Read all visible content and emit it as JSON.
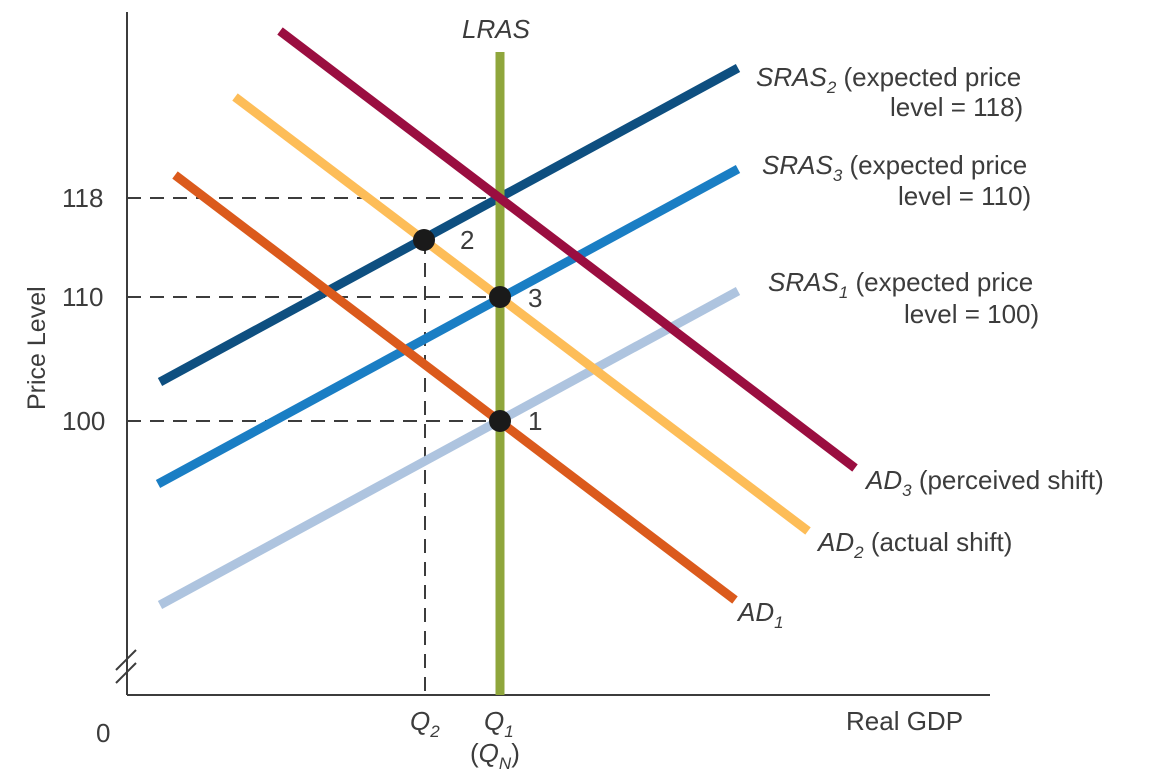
{
  "chart_data": {
    "type": "line",
    "title": "",
    "xlabel": "Real GDP",
    "ylabel": "Price Level",
    "origin_label": "0",
    "yticks": [
      {
        "value": 100,
        "label": "100"
      },
      {
        "value": 110,
        "label": "110"
      },
      {
        "value": 118,
        "label": "118"
      }
    ],
    "xticks": [
      {
        "id": "q2",
        "label": "Q",
        "sub": "2"
      },
      {
        "id": "q1",
        "label": "Q",
        "sub": "1"
      },
      {
        "id": "qn",
        "prefix": "(",
        "label": "Q",
        "sub": "N",
        "suffix": ")"
      }
    ],
    "curves": [
      {
        "id": "lras",
        "color": "#8fa63c",
        "label": "LRAS",
        "sub": "",
        "note": ""
      },
      {
        "id": "sras1",
        "color": "#aec4df",
        "label": "SRAS",
        "sub": "1",
        "note": " (expected price",
        "note2": "level = 100)"
      },
      {
        "id": "sras3",
        "color": "#1a7ec4",
        "label": "SRAS",
        "sub": "3",
        "note": " (expected price",
        "note2": "level = 110)"
      },
      {
        "id": "sras2",
        "color": "#0e4f80",
        "label": "SRAS",
        "sub": "2",
        "note": " (expected price",
        "note2": "level = 118)"
      },
      {
        "id": "ad1",
        "color": "#db5a1c",
        "label": "AD",
        "sub": "1",
        "note": ""
      },
      {
        "id": "ad2",
        "color": "#fdbd58",
        "label": "AD",
        "sub": "2",
        "note": " (actual shift)"
      },
      {
        "id": "ad3",
        "color": "#9a0e40",
        "label": "AD",
        "sub": "3",
        "note": " (perceived shift)"
      }
    ],
    "points": [
      {
        "id": "p1",
        "label": "1",
        "price": 100,
        "x": "Q1"
      },
      {
        "id": "p2",
        "label": "2",
        "price": 114,
        "x": "Q2"
      },
      {
        "id": "p3",
        "label": "3",
        "price": 110,
        "x": "Q1"
      }
    ],
    "grid": false
  }
}
